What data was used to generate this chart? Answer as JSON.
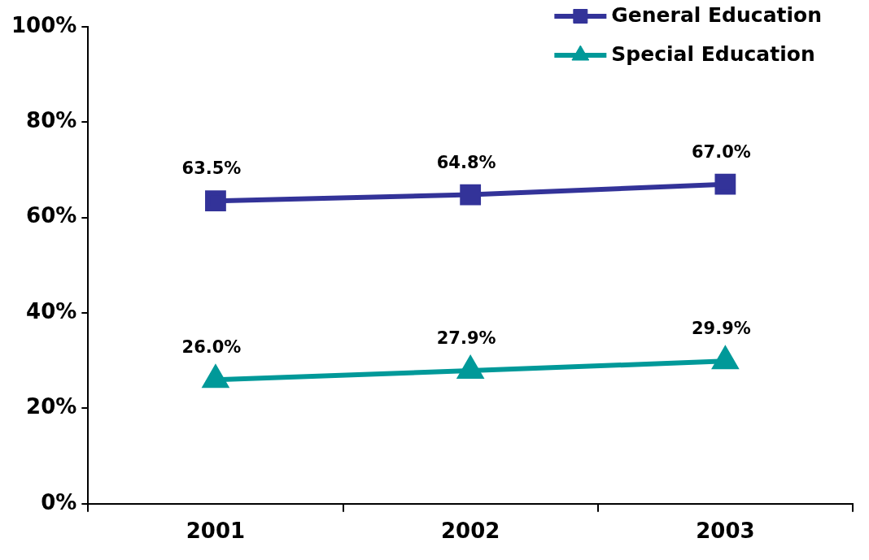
{
  "chart_data": {
    "type": "line",
    "categories": [
      "2001",
      "2002",
      "2003"
    ],
    "series": [
      {
        "name": "General Education",
        "color": "#333399",
        "values": [
          63.5,
          64.8,
          67.0
        ],
        "marker": "square",
        "value_labels": [
          "63.5%",
          "64.8%",
          "67.0%"
        ]
      },
      {
        "name": "Special Education",
        "color": "#009999",
        "values": [
          26.0,
          27.9,
          29.9
        ],
        "marker": "triangle",
        "value_labels": [
          "26.0%",
          "27.9%",
          "29.9%"
        ]
      }
    ],
    "ylim": [
      0,
      100
    ],
    "yticks": [
      {
        "value": 0,
        "label": "0%"
      },
      {
        "value": 20,
        "label": "20%"
      },
      {
        "value": 40,
        "label": "40%"
      },
      {
        "value": 60,
        "label": "60%"
      },
      {
        "value": 80,
        "label": "80%"
      },
      {
        "value": 100,
        "label": "100%"
      }
    ],
    "grid": false,
    "legend": "top right",
    "line_style": "solid"
  }
}
